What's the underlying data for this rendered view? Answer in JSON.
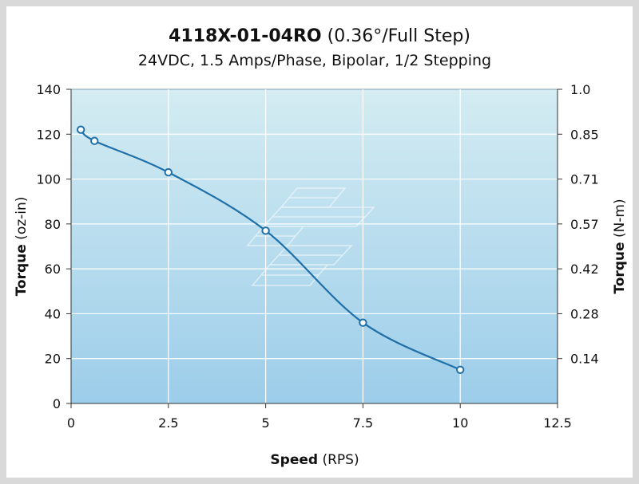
{
  "chart_data": {
    "type": "line",
    "title_bold": "4118X-01-04RO",
    "title_rest": " (0.36°/Full Step)",
    "subtitle": "24VDC, 1.5 Amps/Phase, Bipolar, 1/2 Stepping",
    "xlabel_bold": "Speed",
    "xlabel_rest": " (RPS)",
    "ylabel_bold": "Torque",
    "ylabel_rest": " (oz-in)",
    "y2label_bold": "Torque",
    "y2label_rest": " (N-m)",
    "xlim": [
      0,
      12.5
    ],
    "ylim": [
      0,
      140
    ],
    "x_ticks": [
      0,
      2.5,
      5,
      7.5,
      10,
      12.5
    ],
    "x_tick_labels": [
      "0",
      "2.5",
      "5",
      "7.5",
      "10",
      "12.5"
    ],
    "y_ticks": [
      0,
      20,
      40,
      60,
      80,
      100,
      120,
      140
    ],
    "y_tick_labels": [
      "0",
      "20",
      "40",
      "60",
      "80",
      "100",
      "120",
      "140"
    ],
    "y2_ticks": [
      20,
      40,
      60,
      80,
      100,
      120,
      140
    ],
    "y2_tick_labels": [
      "0.14",
      "0.28",
      "0.42",
      "0.57",
      "0.71",
      "0.85",
      "1.0"
    ],
    "grid": true,
    "colors": {
      "line": "#1f6fa8",
      "plot_top": "#d4ecf2",
      "plot_bottom": "#9ccdea",
      "grid": "#ffffff"
    },
    "series": [
      {
        "x": [
          0.25,
          0.6,
          2.5,
          5,
          7.5,
          10
        ],
        "y": [
          122,
          117,
          103,
          77,
          36,
          15
        ]
      }
    ]
  }
}
